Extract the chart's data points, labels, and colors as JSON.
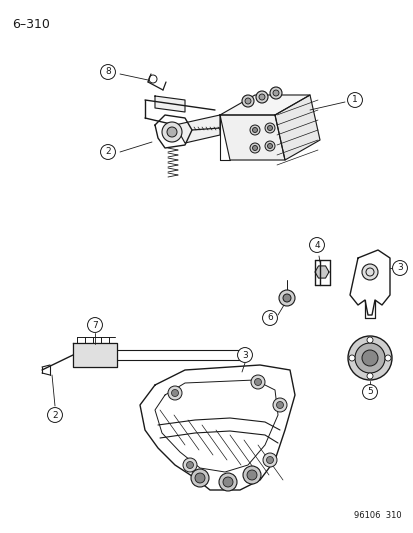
{
  "page_label": "6–310",
  "part_number_label": "96106  310",
  "background_color": "#ffffff",
  "line_color": "#1a1a1a",
  "figsize": [
    4.14,
    5.33
  ],
  "dpi": 100,
  "callout_r": 0.018,
  "callout_fontsize": 6.5,
  "label_fontsize": 9,
  "partnum_fontsize": 6
}
